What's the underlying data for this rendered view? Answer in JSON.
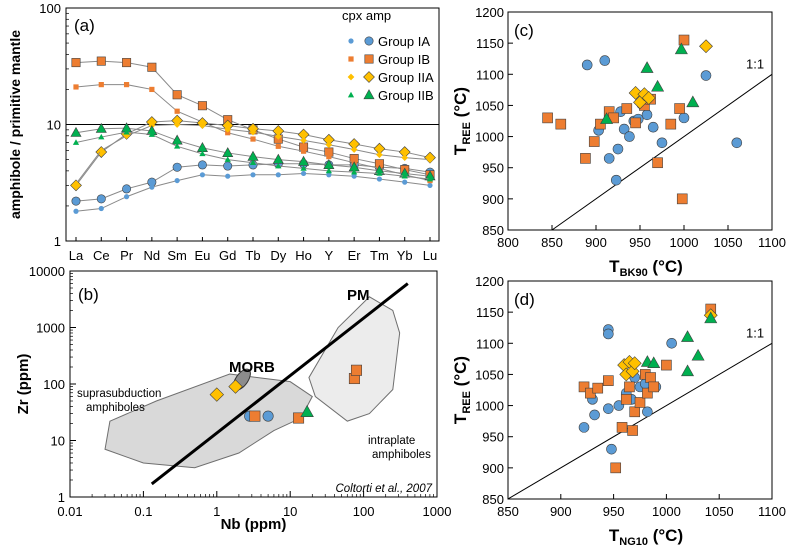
{
  "colors": {
    "blue": "#5b9bd5",
    "orange": "#ed7d31",
    "yellow": "#ffc000",
    "green": "#00b050",
    "grey_region": "#d9d9d9",
    "grey_region2": "#ececec",
    "morb": "#8c8c8c",
    "line_grey": "#8a8a8a"
  },
  "chart_data": [
    {
      "panel": "(a)",
      "type": "line",
      "ylabel": "amphibole / primitive mantle",
      "yscale": "log",
      "ylim": [
        1,
        100
      ],
      "yticks": [
        "1",
        "10",
        "100"
      ],
      "reference_line": 10,
      "categories": [
        "La",
        "Ce",
        "Pr",
        "Nd",
        "Sm",
        "Eu",
        "Gd",
        "Tb",
        "Dy",
        "Ho",
        "Y",
        "Er",
        "Tm",
        "Yb",
        "Lu"
      ],
      "legend_header": "cpx  amp",
      "legend": [
        "Group IA",
        "Group IB",
        "Group IIA",
        "Group IIB"
      ],
      "series": [
        {
          "name": "Group IA",
          "mineral": "cpx",
          "values": [
            2.2,
            2.3,
            2.8,
            3.2,
            4.3,
            4.5,
            4.4,
            4.5,
            4.6,
            4.6,
            4.5,
            4.5,
            4.3,
            4.2,
            3.9
          ]
        },
        {
          "name": "Group IA",
          "mineral": "amp",
          "values": [
            1.8,
            1.9,
            2.4,
            2.9,
            3.3,
            3.7,
            3.6,
            3.7,
            3.7,
            3.8,
            3.7,
            3.6,
            3.4,
            3.2,
            3.0
          ]
        },
        {
          "name": "Group IB",
          "mineral": "cpx",
          "values": [
            34,
            35,
            34,
            31,
            18,
            14.5,
            11,
            9,
            7.5,
            6.4,
            5.8,
            5.1,
            4.6,
            4.1,
            3.7
          ]
        },
        {
          "name": "Group IB",
          "mineral": "amp",
          "values": [
            21,
            22,
            22,
            20,
            13,
            10.5,
            8.5,
            7.5,
            6.5,
            5.9,
            5.3,
            4.7,
            4.2,
            3.7,
            3.3
          ]
        },
        {
          "name": "Group IIA",
          "mineral": "cpx",
          "values": [
            3.0,
            5.8,
            8.3,
            10.5,
            10.8,
            10.3,
            9.8,
            9.2,
            8.8,
            8.2,
            7.4,
            6.8,
            6.2,
            5.8,
            5.2
          ]
        },
        {
          "name": "Group IIA",
          "mineral": "amp",
          "values": [
            3.1,
            6.0,
            8.0,
            9.8,
            10.0,
            9.8,
            9.1,
            8.6,
            7.9,
            7.3,
            6.7,
            6.1,
            5.5,
            5.2,
            5.0
          ]
        },
        {
          "name": "Group IIB",
          "mineral": "cpx",
          "values": [
            8.5,
            9.2,
            9.3,
            8.8,
            7.3,
            6.3,
            5.7,
            5.3,
            5.0,
            4.8,
            4.5,
            4.3,
            4.0,
            3.8,
            3.6
          ]
        },
        {
          "name": "Group IIB",
          "mineral": "amp",
          "values": [
            7.0,
            7.8,
            8.6,
            8.2,
            6.5,
            5.6,
            5.0,
            4.7,
            4.4,
            4.2,
            4.0,
            3.9,
            3.8,
            3.6,
            3.4
          ]
        }
      ]
    },
    {
      "panel": "(b)",
      "type": "scatter",
      "xlabel": "Nb (ppm)",
      "ylabel": "Zr (ppm)",
      "xscale": "log",
      "yscale": "log",
      "xlim": [
        0.01,
        1000
      ],
      "ylim": [
        1,
        10000
      ],
      "xticks": [
        "0.01",
        "0.1",
        "1",
        "10",
        "100",
        "1000"
      ],
      "yticks": [
        "1",
        "10",
        "100",
        "1000",
        "10000"
      ],
      "pm_line": {
        "label": "PM",
        "from": [
          0.13,
          1.7
        ],
        "to": [
          400,
          6000
        ]
      },
      "morb_label": "MORB",
      "morb_center": [
        2.2,
        120
      ],
      "region_suprasubduction": {
        "label": "suprasubduction amphiboles",
        "polygon": [
          [
            0.035,
            22
          ],
          [
            0.15,
            50
          ],
          [
            1.5,
            150
          ],
          [
            10,
            110
          ],
          [
            20,
            60
          ],
          [
            14,
            25
          ],
          [
            6,
            15
          ],
          [
            2,
            6
          ],
          [
            0.5,
            3.3
          ],
          [
            0.1,
            4
          ],
          [
            0.03,
            7
          ]
        ]
      },
      "region_intraplate": {
        "label": "intraplate amphiboles",
        "polygon": [
          [
            18,
            130
          ],
          [
            45,
            1000
          ],
          [
            120,
            3500
          ],
          [
            250,
            2000
          ],
          [
            310,
            800
          ],
          [
            250,
            80
          ],
          [
            120,
            30
          ],
          [
            60,
            22
          ],
          [
            22,
            60
          ]
        ]
      },
      "citation": "Coltorti et al., 2007",
      "points": [
        {
          "group": "Group IIA",
          "x": 1.0,
          "y": 65
        },
        {
          "group": "Group IIA",
          "x": 1.8,
          "y": 90
        },
        {
          "group": "Group IA",
          "x": 2.8,
          "y": 27
        },
        {
          "group": "Group IA",
          "x": 5.0,
          "y": 27
        },
        {
          "group": "Group IB",
          "x": 3.3,
          "y": 27
        },
        {
          "group": "Group IB",
          "x": 13,
          "y": 25
        },
        {
          "group": "Group IB",
          "x": 75,
          "y": 125
        },
        {
          "group": "Group IB",
          "x": 80,
          "y": 175
        },
        {
          "group": "Group IIB",
          "x": 17,
          "y": 32
        }
      ]
    },
    {
      "panel": "(c)",
      "type": "scatter",
      "xlabel": "T",
      "xlabel_sub": "BK90",
      "xlabel_unit": " (°C)",
      "ylabel": "T",
      "ylabel_sub": "REE",
      "ylabel_unit": " (°C)",
      "xlim": [
        800,
        1100
      ],
      "ylim": [
        850,
        1200
      ],
      "xticks": [
        "800",
        "850",
        "900",
        "950",
        "1000",
        "1050",
        "1100"
      ],
      "yticks": [
        "850",
        "900",
        "950",
        "1000",
        "1050",
        "1100",
        "1150",
        "1200"
      ],
      "one_to_one_label": "1:1",
      "points": [
        {
          "group": "Group IA",
          "x": 890,
          "y": 1115
        },
        {
          "group": "Group IA",
          "x": 910,
          "y": 1122
        },
        {
          "group": "Group IA",
          "x": 903,
          "y": 1010
        },
        {
          "group": "Group IA",
          "x": 915,
          "y": 965
        },
        {
          "group": "Group IA",
          "x": 923,
          "y": 930
        },
        {
          "group": "Group IA",
          "x": 925,
          "y": 980
        },
        {
          "group": "Group IA",
          "x": 928,
          "y": 1040
        },
        {
          "group": "Group IA",
          "x": 932,
          "y": 1012
        },
        {
          "group": "Group IA",
          "x": 938,
          "y": 1000
        },
        {
          "group": "Group IA",
          "x": 943,
          "y": 1025
        },
        {
          "group": "Group IA",
          "x": 948,
          "y": 1028
        },
        {
          "group": "Group IA",
          "x": 952,
          "y": 1052
        },
        {
          "group": "Group IA",
          "x": 958,
          "y": 1035
        },
        {
          "group": "Group IA",
          "x": 965,
          "y": 1015
        },
        {
          "group": "Group IA",
          "x": 975,
          "y": 990
        },
        {
          "group": "Group IA",
          "x": 1000,
          "y": 1030
        },
        {
          "group": "Group IA",
          "x": 1025,
          "y": 1098
        },
        {
          "group": "Group IA",
          "x": 1060,
          "y": 990
        },
        {
          "group": "Group IB",
          "x": 845,
          "y": 1030
        },
        {
          "group": "Group IB",
          "x": 860,
          "y": 1020
        },
        {
          "group": "Group IB",
          "x": 888,
          "y": 965
        },
        {
          "group": "Group IB",
          "x": 898,
          "y": 992
        },
        {
          "group": "Group IB",
          "x": 905,
          "y": 1020
        },
        {
          "group": "Group IB",
          "x": 915,
          "y": 1040
        },
        {
          "group": "Group IB",
          "x": 920,
          "y": 1030
        },
        {
          "group": "Group IB",
          "x": 935,
          "y": 1045
        },
        {
          "group": "Group IB",
          "x": 945,
          "y": 1022
        },
        {
          "group": "Group IB",
          "x": 955,
          "y": 1050
        },
        {
          "group": "Group IB",
          "x": 962,
          "y": 1060
        },
        {
          "group": "Group IB",
          "x": 970,
          "y": 958
        },
        {
          "group": "Group IB",
          "x": 985,
          "y": 1020
        },
        {
          "group": "Group IB",
          "x": 995,
          "y": 1045
        },
        {
          "group": "Group IB",
          "x": 998,
          "y": 900
        },
        {
          "group": "Group IB",
          "x": 1000,
          "y": 1155
        },
        {
          "group": "Group IIA",
          "x": 945,
          "y": 1070
        },
        {
          "group": "Group IIA",
          "x": 950,
          "y": 1055
        },
        {
          "group": "Group IIA",
          "x": 955,
          "y": 1068
        },
        {
          "group": "Group IIA",
          "x": 960,
          "y": 1062
        },
        {
          "group": "Group IIA",
          "x": 1025,
          "y": 1145
        },
        {
          "group": "Group IIB",
          "x": 912,
          "y": 1028
        },
        {
          "group": "Group IIB",
          "x": 958,
          "y": 1110
        },
        {
          "group": "Group IIB",
          "x": 970,
          "y": 1080
        },
        {
          "group": "Group IIB",
          "x": 997,
          "y": 1140
        },
        {
          "group": "Group IIB",
          "x": 1010,
          "y": 1055
        }
      ]
    },
    {
      "panel": "(d)",
      "type": "scatter",
      "xlabel": "T",
      "xlabel_sub": "NG10",
      "xlabel_unit": " (°C)",
      "ylabel": "T",
      "ylabel_sub": "REE",
      "ylabel_unit": " (°C)",
      "xlim": [
        850,
        1100
      ],
      "ylim": [
        850,
        1200
      ],
      "xticks": [
        "850",
        "900",
        "950",
        "1000",
        "1050",
        "1100"
      ],
      "yticks": [
        "850",
        "900",
        "950",
        "1000",
        "1050",
        "1100",
        "1150",
        "1200"
      ],
      "one_to_one_label": "1:1",
      "points": [
        {
          "group": "Group IA",
          "x": 945,
          "y": 1122
        },
        {
          "group": "Group IA",
          "x": 945,
          "y": 1115
        },
        {
          "group": "Group IA",
          "x": 922,
          "y": 965
        },
        {
          "group": "Group IA",
          "x": 930,
          "y": 1010
        },
        {
          "group": "Group IA",
          "x": 932,
          "y": 985
        },
        {
          "group": "Group IA",
          "x": 945,
          "y": 995
        },
        {
          "group": "Group IA",
          "x": 948,
          "y": 930
        },
        {
          "group": "Group IA",
          "x": 955,
          "y": 1000
        },
        {
          "group": "Group IA",
          "x": 962,
          "y": 1020
        },
        {
          "group": "Group IA",
          "x": 967,
          "y": 1010
        },
        {
          "group": "Group IA",
          "x": 970,
          "y": 1045
        },
        {
          "group": "Group IA",
          "x": 975,
          "y": 1030
        },
        {
          "group": "Group IA",
          "x": 980,
          "y": 1035
        },
        {
          "group": "Group IA",
          "x": 982,
          "y": 990
        },
        {
          "group": "Group IA",
          "x": 990,
          "y": 1030
        },
        {
          "group": "Group IA",
          "x": 1005,
          "y": 1100
        },
        {
          "group": "Group IB",
          "x": 922,
          "y": 1030
        },
        {
          "group": "Group IB",
          "x": 928,
          "y": 1020
        },
        {
          "group": "Group IB",
          "x": 935,
          "y": 1028
        },
        {
          "group": "Group IB",
          "x": 945,
          "y": 1040
        },
        {
          "group": "Group IB",
          "x": 952,
          "y": 900
        },
        {
          "group": "Group IB",
          "x": 958,
          "y": 965
        },
        {
          "group": "Group IB",
          "x": 962,
          "y": 1010
        },
        {
          "group": "Group IB",
          "x": 965,
          "y": 1030
        },
        {
          "group": "Group IB",
          "x": 968,
          "y": 960
        },
        {
          "group": "Group IB",
          "x": 970,
          "y": 990
        },
        {
          "group": "Group IB",
          "x": 975,
          "y": 1005
        },
        {
          "group": "Group IB",
          "x": 980,
          "y": 1050
        },
        {
          "group": "Group IB",
          "x": 982,
          "y": 1020
        },
        {
          "group": "Group IB",
          "x": 985,
          "y": 1045
        },
        {
          "group": "Group IB",
          "x": 988,
          "y": 1030
        },
        {
          "group": "Group IB",
          "x": 1000,
          "y": 1065
        },
        {
          "group": "Group IB",
          "x": 1042,
          "y": 1155
        },
        {
          "group": "Group IIA",
          "x": 960,
          "y": 1065
        },
        {
          "group": "Group IIA",
          "x": 962,
          "y": 1050
        },
        {
          "group": "Group IIA",
          "x": 965,
          "y": 1070
        },
        {
          "group": "Group IIA",
          "x": 968,
          "y": 1055
        },
        {
          "group": "Group IIA",
          "x": 970,
          "y": 1068
        },
        {
          "group": "Group IIA",
          "x": 1042,
          "y": 1145
        },
        {
          "group": "Group IIB",
          "x": 982,
          "y": 1070
        },
        {
          "group": "Group IIB",
          "x": 988,
          "y": 1068
        },
        {
          "group": "Group IIB",
          "x": 1020,
          "y": 1110
        },
        {
          "group": "Group IIB",
          "x": 1020,
          "y": 1055
        },
        {
          "group": "Group IIB",
          "x": 1030,
          "y": 1080
        },
        {
          "group": "Group IIB",
          "x": 1042,
          "y": 1140
        }
      ]
    }
  ]
}
